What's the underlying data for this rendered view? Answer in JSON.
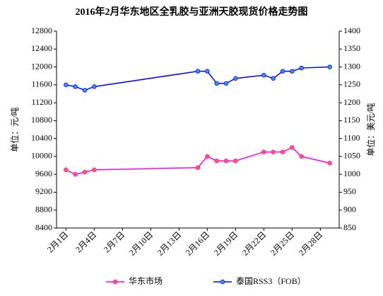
{
  "chart_data": {
    "type": "line",
    "title": "2016年2月华东地区全乳胶与亚洲天胶现货价格走势图",
    "ylabel": "单位：元/吨",
    "y2label": "单位：美元/吨",
    "x": [
      1,
      2,
      3,
      4,
      15,
      16,
      17,
      18,
      19,
      22,
      23,
      24,
      25,
      26,
      29
    ],
    "xlim": [
      0,
      30
    ],
    "xticks": [
      {
        "value": 1,
        "label": "2月1日"
      },
      {
        "value": 4,
        "label": "2月4日"
      },
      {
        "value": 7,
        "label": "2月7日"
      },
      {
        "value": 10,
        "label": "2月10日"
      },
      {
        "value": 13,
        "label": "2月13日"
      },
      {
        "value": 16,
        "label": "2月16日"
      },
      {
        "value": 19,
        "label": "2月19日"
      },
      {
        "value": 22,
        "label": "2月22日"
      },
      {
        "value": 25,
        "label": "2月25日"
      },
      {
        "value": 28,
        "label": "2月28日"
      }
    ],
    "ylim": [
      8400,
      12800
    ],
    "yticks": [
      8400,
      8800,
      9200,
      9600,
      10000,
      10400,
      10800,
      11200,
      11600,
      12000,
      12400,
      12800
    ],
    "y2lim": [
      850,
      1400
    ],
    "y2ticks": [
      850,
      900,
      950,
      1000,
      1050,
      1100,
      1150,
      1200,
      1250,
      1300,
      1350,
      1400
    ],
    "legend": "bottom",
    "grid": false,
    "series": [
      {
        "name": "华东市场",
        "color": "#ff00ff",
        "marker_color": "#ff6633",
        "values": [
          9700,
          9600,
          9650,
          9700,
          9750,
          10000,
          9900,
          9900,
          9900,
          10100,
          10100,
          10100,
          10200,
          10000,
          9850
        ]
      },
      {
        "name": "泰国RSS3（FOB）",
        "color": "#0000ff",
        "marker_color": "#3399ff",
        "axis": "y2",
        "values": [
          1250,
          1245,
          1235,
          1245,
          1288,
          1288,
          1254,
          1254,
          1268,
          1277,
          1268,
          1288,
          1288,
          1297,
          1300
        ]
      }
    ]
  }
}
